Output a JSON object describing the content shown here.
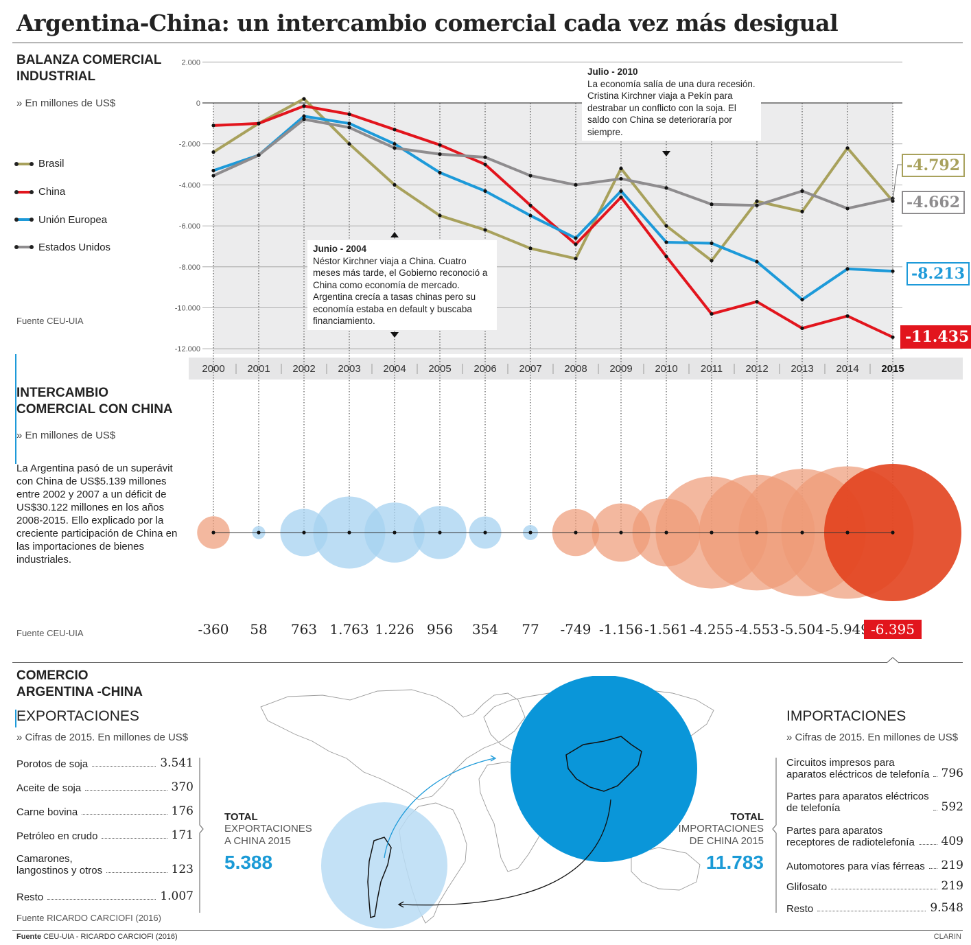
{
  "title": "Argentina-China: un intercambio comercial cada vez más desigual",
  "balanza": {
    "title_l1": "BALANZA COMERCIAL",
    "title_l2": "INDUSTRIAL",
    "unit": "» En millones de US$",
    "source": "Fuente CEU-UIA",
    "note_2004_title": "Junio - 2004",
    "note_2004_text": "Néstor Kirchner viaja a China. Cuatro meses más tarde, el Gobierno reconoció a China como economía de mercado. Argentina crecía a tasas chinas pero su economía estaba en default y buscaba financiamiento.",
    "note_2010_title": "Julio - 2010",
    "note_2010_text": "La economía salía de una dura recesión. Cristina Kirchner viaja a Pekín para destrabar un conflicto con la soja. El saldo con China se deterioraría por siempre.",
    "end_labels": {
      "brasil": "-4.792",
      "eeuu": "-4.662",
      "ue": "-8.213",
      "china": "-11.435"
    }
  },
  "chart_data": [
    {
      "type": "line",
      "x": [
        2000,
        2001,
        2002,
        2003,
        2004,
        2005,
        2006,
        2007,
        2008,
        2009,
        2010,
        2011,
        2012,
        2013,
        2014,
        2015
      ],
      "year_labels": [
        "2000",
        "2001",
        "2002",
        "2003",
        "2004",
        "2005",
        "2006",
        "2007",
        "2008",
        "2009",
        "2010",
        "2011",
        "2012",
        "2013",
        "2014",
        "2015"
      ],
      "ylim": [
        -12000,
        2000
      ],
      "yticks": [
        2000,
        0,
        -2000,
        -4000,
        -6000,
        -8000,
        -10000,
        -12000
      ],
      "ytick_labels": [
        "2.000",
        "0",
        "-2.000",
        "-4.000",
        "-6.000",
        "-8.000",
        "-10.000",
        "-12.000"
      ],
      "series": [
        {
          "name": "Brasil",
          "color": "#a8a15c",
          "values": [
            -2400,
            -1000,
            200,
            -2000,
            -4000,
            -5500,
            -6200,
            -7100,
            -7600,
            -3200,
            -6000,
            -7700,
            -4800,
            -5300,
            -2200,
            -4792
          ]
        },
        {
          "name": "China",
          "color": "#e2151d",
          "values": [
            -1100,
            -1000,
            -150,
            -550,
            -1300,
            -2050,
            -3000,
            -5000,
            -6900,
            -4600,
            -7500,
            -10300,
            -9700,
            -11000,
            -10400,
            -11435
          ]
        },
        {
          "name": "Unión Europea",
          "color": "#1d9ad9",
          "values": [
            -3300,
            -2550,
            -650,
            -1000,
            -2000,
            -3400,
            -4300,
            -5500,
            -6600,
            -4300,
            -6800,
            -6850,
            -7750,
            -9600,
            -8100,
            -8213
          ]
        },
        {
          "name": "Estados Unidos",
          "color": "#8e8c8e",
          "values": [
            -3550,
            -2550,
            -800,
            -1200,
            -2200,
            -2500,
            -2650,
            -3550,
            -4000,
            -3700,
            -4150,
            -4950,
            -5000,
            -4300,
            -5150,
            -4662
          ]
        }
      ]
    },
    {
      "type": "scatter",
      "title": "INTERCAMBIO COMERCIAL CON CHINA",
      "x": [
        2000,
        2001,
        2002,
        2003,
        2004,
        2005,
        2006,
        2007,
        2008,
        2009,
        2010,
        2011,
        2012,
        2013,
        2014,
        2015
      ],
      "values": [
        -360,
        58,
        763,
        1763,
        1226,
        956,
        354,
        77,
        -749,
        -1156,
        -1561,
        -4255,
        -4553,
        -5504,
        -5949,
        -6395
      ],
      "labels": [
        "-360",
        "58",
        "763",
        "1.763",
        "1.226",
        "956",
        "354",
        "77",
        "-749",
        "-1.156",
        "-1.561",
        "-4.255",
        "-4.553",
        "-5.504",
        "-5.949",
        "-6.395"
      ],
      "colors": {
        "positive": "#a5d2f0",
        "negative": "#ee9a76",
        "highlight": "#e2431e"
      }
    }
  ],
  "intercambio": {
    "title_l1": "INTERCAMBIO",
    "title_l2": "COMERCIAL CON CHINA",
    "unit": "» En millones de US$",
    "text": "La Argentina pasó de un superávit con China de US$5.139 millones entre 2002 y 2007 a un déficit de US$30.122 millones en los años 2008-2015. Ello explicado por la creciente participación de China en las importaciones de bienes industriales.",
    "source": "Fuente CEU-UIA"
  },
  "comercio": {
    "title_l1": "COMERCIO",
    "title_l2": "ARGENTINA -CHINA",
    "exp": {
      "title": "EXPORTACIONES",
      "unit": "» Cifras de 2015. En millones de US$",
      "rows": [
        {
          "label": "Porotos de soja",
          "value": "3.541"
        },
        {
          "label": "Aceite de soja",
          "value": "370"
        },
        {
          "label": "Carne bovina",
          "value": "176"
        },
        {
          "label": "Petróleo en crudo",
          "value": "171"
        },
        {
          "label": "Camarones,",
          "label2": "langostinos y otros",
          "value": "123"
        },
        {
          "label": "Resto",
          "value": "1.007"
        }
      ],
      "source": "Fuente RICARDO CARCIOFI (2016)",
      "total_head": "TOTAL",
      "total_sub1": "EXPORTACIONES",
      "total_sub2": "A CHINA 2015",
      "total_value": "5.388"
    },
    "imp": {
      "title": "IMPORTACIONES",
      "unit": "» Cifras de 2015. En millones de US$",
      "rows": [
        {
          "label": "Circuitos impresos para",
          "label2": "aparatos eléctricos de telefonía",
          "value": "796"
        },
        {
          "label": "Partes para aparatos eléctricos",
          "label2": "de telefonía",
          "value": "592"
        },
        {
          "label": "Partes para aparatos",
          "label2": "receptores de radiotelefonía",
          "value": "409"
        },
        {
          "label": "Automotores para vías férreas",
          "value": "219"
        },
        {
          "label": "Glifosato",
          "value": "219"
        },
        {
          "label": "Resto",
          "value": "9.548"
        }
      ],
      "total_head": "TOTAL",
      "total_sub1": "IMPORTACIONES",
      "total_sub2": "DE CHINA 2015",
      "total_value": "11.783"
    }
  },
  "footer": {
    "source_bold": "Fuente",
    "source_text": "CEU-UIA - RICARDO CARCIOFI (2016)",
    "brand": "CLARIN"
  }
}
